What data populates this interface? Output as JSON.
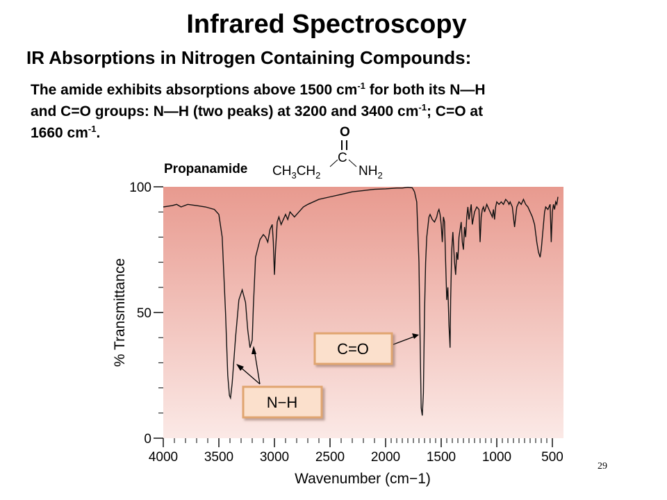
{
  "slide": {
    "title": "Infrared Spectroscopy",
    "subtitle": "IR Absorptions in Nitrogen Containing Compounds:",
    "desc": {
      "l1a": "The amide exhibits absorptions above 1500 cm",
      "l1sup": "-1",
      "l1b": " for both its N—H",
      "l2a": "and C=O groups: N—H (two peaks) at 3200 and 3400 cm",
      "l2sup": "-1",
      "l2b": "; C=O at",
      "l3a": "1660 cm",
      "l3sup": "-1",
      "l3b": "."
    },
    "page_number": "29"
  },
  "molecule": {
    "name": "Propanamide",
    "left_group": "CH3CH2",
    "carbonyl_o": "O",
    "carbonyl_c": "C",
    "right_group": "NH2"
  },
  "chart_data": {
    "type": "line",
    "title": "",
    "xlabel": "Wavenumber (cm−1)",
    "ylabel": "% Transmittance",
    "xlim": [
      4000,
      450
    ],
    "ylim": [
      0,
      100
    ],
    "x_ticks": [
      4000,
      3500,
      3000,
      2500,
      2000,
      1500,
      1000,
      500
    ],
    "y_ticks": [
      0,
      50,
      100
    ],
    "grid": false,
    "series": [
      {
        "x": [
          4000,
          3920,
          3880,
          3840,
          3780,
          3700,
          3620,
          3540,
          3500,
          3470,
          3440,
          3420,
          3405,
          3395,
          3380,
          3350,
          3320,
          3290,
          3260,
          3240,
          3220,
          3200,
          3190,
          3170,
          3130,
          3100,
          3080,
          3060,
          3040,
          3020,
          3010,
          3000,
          2990,
          2975,
          2960,
          2940,
          2900,
          2880,
          2860,
          2820,
          2780,
          2740,
          2700,
          2600,
          2500,
          2400,
          2300,
          2200,
          2100,
          2000,
          1900,
          1850,
          1800,
          1760,
          1740,
          1720,
          1700,
          1690,
          1680,
          1670,
          1660,
          1650,
          1640,
          1630,
          1610,
          1600,
          1580,
          1560,
          1540,
          1530,
          1520,
          1510,
          1500,
          1490,
          1480,
          1470,
          1460,
          1450,
          1440,
          1430,
          1420,
          1415,
          1405,
          1395,
          1380,
          1370,
          1360,
          1350,
          1340,
          1320,
          1310,
          1300,
          1290,
          1280,
          1270,
          1260,
          1250,
          1240,
          1230,
          1220,
          1200,
          1180,
          1160,
          1150,
          1140,
          1130,
          1120,
          1110,
          1090,
          1080,
          1060,
          1040,
          1030,
          1020,
          1010,
          1000,
          980,
          960,
          940,
          920,
          900,
          890,
          880,
          860,
          840,
          830,
          820,
          800,
          780,
          760,
          740,
          720,
          700,
          680,
          660,
          640,
          625,
          610,
          600,
          590,
          580,
          570,
          560,
          540,
          520,
          510,
          500,
          490,
          480,
          470,
          460,
          450
        ],
        "y": [
          92,
          92.5,
          93,
          92,
          93,
          92.5,
          92,
          91,
          89,
          80,
          50,
          25,
          17,
          16,
          22,
          40,
          55,
          59,
          54,
          43,
          36,
          39,
          52,
          72,
          79,
          81,
          80,
          78,
          83,
          85,
          78,
          65,
          75,
          86,
          88,
          85,
          89,
          87,
          90,
          88,
          90,
          92,
          93,
          95,
          96,
          97,
          98,
          98.5,
          99,
          99.2,
          99.5,
          99.5,
          99.8,
          99.6,
          98,
          94,
          70,
          40,
          12,
          9,
          18,
          50,
          70,
          80,
          88,
          89,
          87,
          86,
          88,
          90,
          91,
          89,
          85,
          78,
          88,
          86,
          70,
          55,
          60,
          45,
          36,
          55,
          75,
          82,
          70,
          65,
          74,
          71,
          80,
          86,
          78,
          75,
          84,
          80,
          88,
          92,
          87,
          90,
          93,
          85,
          90,
          92,
          91,
          78,
          88,
          91,
          92,
          90,
          93,
          92,
          90,
          88,
          91,
          87,
          92,
          94,
          93,
          94,
          93,
          95,
          94,
          93,
          94,
          92,
          84,
          88,
          92,
          94,
          93,
          95,
          93,
          92,
          90,
          88,
          85,
          78,
          74,
          72,
          75,
          80,
          85,
          90,
          92,
          91,
          93,
          78,
          90,
          93,
          91,
          94,
          93,
          96
        ]
      }
    ],
    "annotations": [
      {
        "text": "N−H",
        "peaks_x": [
          3380,
          3200
        ]
      },
      {
        "text": "C=O",
        "peaks_x": [
          1670
        ]
      }
    ],
    "colors": {
      "background_top": "#e89a8f",
      "background_bottom": "#fbe9e6",
      "label_box_fill": "#fbe0cc",
      "label_box_border": "#e0a570",
      "line": "#111111"
    }
  }
}
